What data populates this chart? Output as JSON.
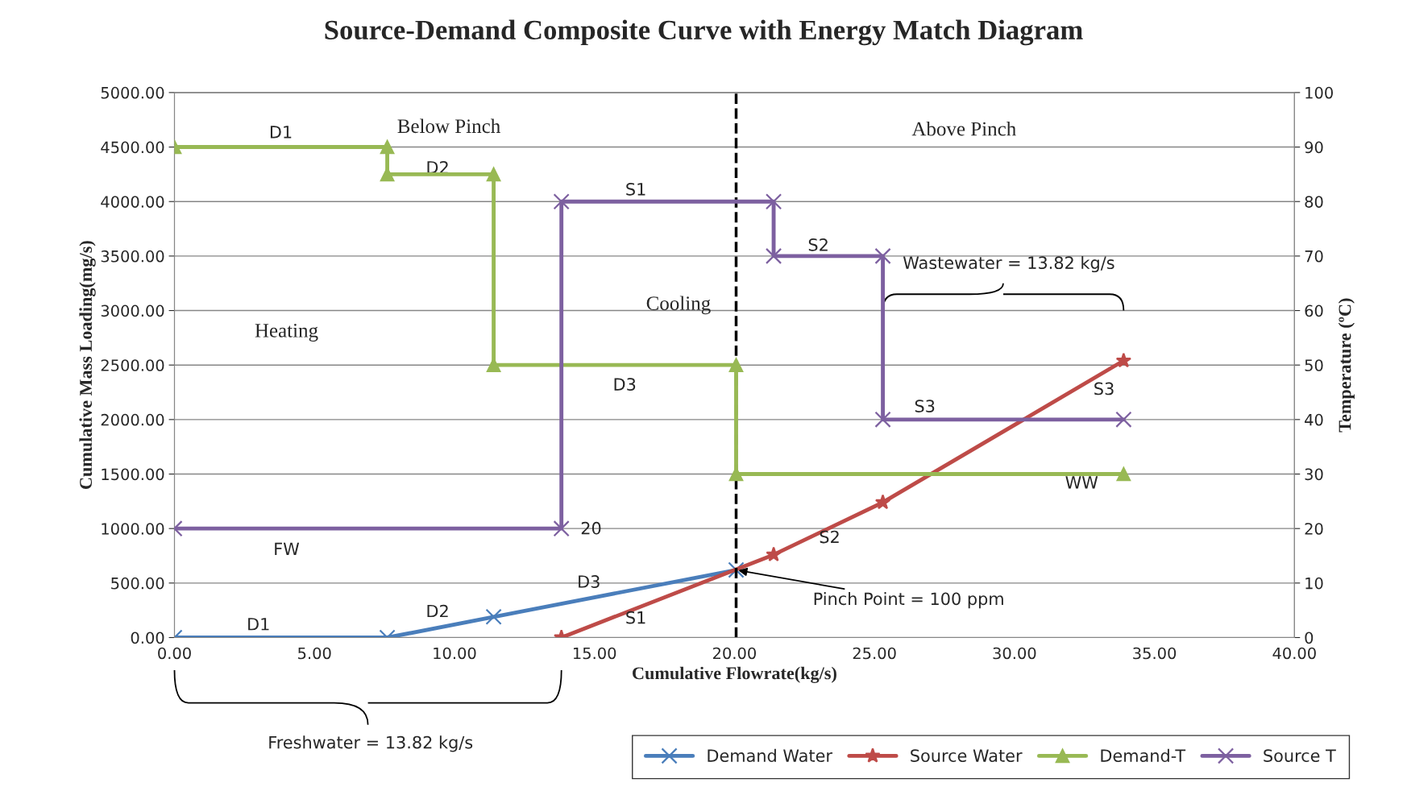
{
  "chart_data": {
    "type": "line",
    "title": "Source-Demand Composite Curve with Energy Match Diagram",
    "xlabel": "Cumulative Flowrate(kg/s)",
    "ylabel": "Cumulative Mass Loading(mg/s)",
    "y2label": "Temperature (ºC)",
    "xlim": [
      0,
      40
    ],
    "ylim": [
      0,
      5000
    ],
    "y2lim": [
      0,
      100
    ],
    "xticks": [
      {
        "value": 0,
        "label": "0.00"
      },
      {
        "value": 5,
        "label": "5.00"
      },
      {
        "value": 10,
        "label": "10.00"
      },
      {
        "value": 15,
        "label": "15.00"
      },
      {
        "value": 20,
        "label": "20.00"
      },
      {
        "value": 25,
        "label": "25.00"
      },
      {
        "value": 30,
        "label": "30.00"
      },
      {
        "value": 35,
        "label": "35.00"
      },
      {
        "value": 40,
        "label": "40.00"
      }
    ],
    "yticks": [
      {
        "value": 0,
        "label": "0.00"
      },
      {
        "value": 500,
        "label": "500.00"
      },
      {
        "value": 1000,
        "label": "1000.00"
      },
      {
        "value": 1500,
        "label": "1500.00"
      },
      {
        "value": 2000,
        "label": "2000.00"
      },
      {
        "value": 2500,
        "label": "2500.00"
      },
      {
        "value": 3000,
        "label": "3000.00"
      },
      {
        "value": 3500,
        "label": "3500.00"
      },
      {
        "value": 4000,
        "label": "4000.00"
      },
      {
        "value": 4500,
        "label": "4500.00"
      },
      {
        "value": 5000,
        "label": "5000.00"
      }
    ],
    "y2ticks": [
      0,
      10,
      20,
      30,
      40,
      50,
      60,
      70,
      80,
      90,
      100
    ],
    "grid": "y",
    "legend": "bottom right",
    "series": [
      {
        "name": "Demand Water",
        "color": "#4a7ebb",
        "marker": "cross",
        "x": [
          0,
          7.6,
          11.4,
          20.06
        ],
        "values": [
          0,
          0,
          190,
          620
        ]
      },
      {
        "name": "Source Water",
        "color": "#be4b48",
        "marker": "star",
        "x": [
          13.82,
          21.4,
          25.3,
          33.9
        ],
        "values": [
          0,
          760,
          1240,
          2540
        ]
      },
      {
        "name": "Demand-T",
        "color": "#98b954",
        "marker": "triangle",
        "axis": "y2",
        "x": [
          0,
          7.6,
          7.6,
          11.4,
          11.4,
          20.06,
          20.06,
          33.9
        ],
        "values": [
          90,
          90,
          85,
          85,
          50,
          50,
          30,
          30
        ]
      },
      {
        "name": "Source T",
        "color": "#7d60a0",
        "marker": "cross",
        "axis": "y2",
        "x": [
          0,
          13.82,
          13.82,
          21.4,
          21.4,
          25.3,
          25.3,
          33.9
        ],
        "values": [
          20,
          20,
          80,
          80,
          70,
          70,
          40,
          40
        ]
      }
    ],
    "ref_lines": [
      {
        "axis": "x",
        "value": 20.06,
        "color": "#000000",
        "line_style": "dashed"
      }
    ],
    "annotations": [
      "Below Pinch",
      "Above Pinch",
      "Heating",
      "Cooling",
      "D1",
      "D2",
      "D3",
      "S1",
      "S2",
      "S3",
      "FW",
      "WW",
      "20",
      "D1",
      "D2",
      "D3",
      "S1",
      "S2",
      "S3",
      {
        "text": "Wastewater = 13.82 kg/s",
        "x": 25.3,
        "y": 3000
      },
      "Freshwater = 13.82 kg/s",
      {
        "text": "Pinch Point = 100 ppm",
        "x": 20.06,
        "y": 620
      }
    ]
  }
}
